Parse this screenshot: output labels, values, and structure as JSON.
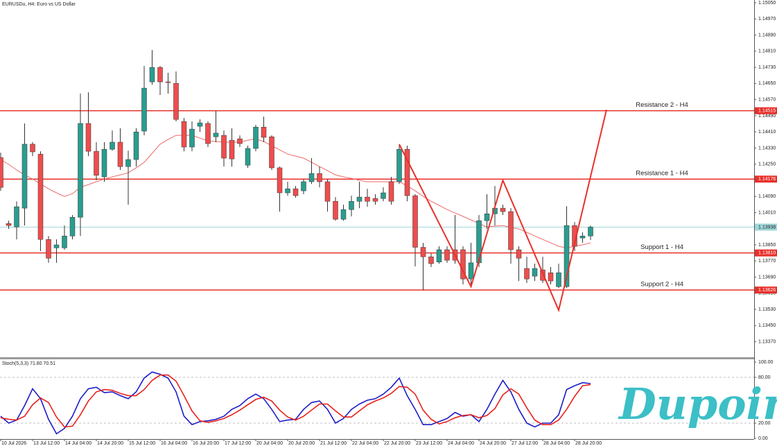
{
  "header": "EURUSDu, H4:  Euro vs US Dollar",
  "watermark": "Dupoin",
  "chart_data": [
    {
      "type": "candlestick",
      "categories": [
        "10 Jul 2026",
        null,
        null,
        null,
        "13 Jul 12:00",
        null,
        null,
        null,
        "14 Jul 04:00",
        null,
        null,
        null,
        "14 Jul 20:00",
        null,
        null,
        null,
        "15 Jul 12:00",
        null,
        null,
        null,
        "16 Jul 04:00",
        null,
        null,
        null,
        "16 Jul 20:00",
        null,
        null,
        null,
        "17 Jul 12:00",
        null,
        null,
        null,
        "20 Jul 04:00",
        null,
        null,
        null,
        "20 Jul 20:00",
        null,
        null,
        null,
        "21 Jul 12:00",
        null,
        null,
        null,
        "22 Jul 04:00",
        null,
        null,
        null,
        "22 Jul 20:00",
        null,
        null,
        null,
        "23 Jul 12:00",
        null,
        null,
        null,
        "24 Jul 04:00",
        null,
        null,
        null,
        "24 Jul 20:00",
        null,
        null,
        null,
        "27 Jul 12:00",
        null,
        null,
        null,
        "28 Jul 04:00",
        null,
        null,
        null,
        "28 Jul 20:00",
        null,
        null
      ],
      "open": [
        1.14283,
        1.13956,
        1.13939,
        1.14032,
        1.14349,
        1.143,
        1.13877,
        1.13835,
        1.13835,
        1.13894,
        1.13987,
        1.14452,
        1.14314,
        1.14187,
        1.14324,
        1.14359,
        1.14238,
        1.14273,
        1.14414,
        1.14658,
        1.1473,
        1.14658,
        1.14651,
        1.14462,
        1.14335,
        1.14438,
        1.14452,
        1.14386,
        1.14393,
        1.14369,
        1.14376,
        1.14245,
        1.14328,
        1.14434,
        1.14386,
        1.14232,
        1.14108,
        1.14128,
        1.14118,
        1.14163,
        1.14204,
        1.14163,
        1.14066,
        1.13977,
        1.14025,
        1.14066,
        1.14087,
        1.1408,
        1.1408,
        1.14163,
        1.14163,
        1.14324,
        1.14094,
        1.13838,
        1.13791,
        1.13765,
        1.13826,
        1.13826,
        1.13826,
        1.13681,
        1.13761,
        1.1397,
        1.14004,
        1.14032,
        1.14015,
        1.13826,
        1.13733,
        1.13695,
        1.13726,
        1.13712,
        1.13643,
        1.13643,
        1.13946,
        1.13884,
        1.13894
      ],
      "high": [
        1.14307,
        1.1397,
        1.14066,
        1.14452,
        1.14359,
        1.14314,
        1.13894,
        1.13877,
        1.13946,
        1.13998,
        1.146,
        1.14606,
        1.14359,
        1.14359,
        1.14417,
        1.14428,
        1.14317,
        1.14428,
        1.14737,
        1.14816,
        1.14737,
        1.14703,
        1.1471,
        1.14479,
        1.14462,
        1.14472,
        1.14462,
        1.14514,
        1.14417,
        1.14428,
        1.14393,
        1.14342,
        1.14445,
        1.14486,
        1.14393,
        1.14238,
        1.14163,
        1.14142,
        1.14176,
        1.1428,
        1.14238,
        1.14176,
        1.14087,
        1.14049,
        1.14094,
        1.14163,
        1.14128,
        1.14101,
        1.14135,
        1.14187,
        1.14349,
        1.14342,
        1.14101,
        1.1386,
        1.13808,
        1.13843,
        1.13843,
        1.13998,
        1.13843,
        1.1386,
        1.13998,
        1.14101,
        1.14142,
        1.14049,
        1.14032,
        1.13843,
        1.13791,
        1.13757,
        1.13791,
        1.1374,
        1.13757,
        1.14042,
        1.13963,
        1.13912,
        1.13946
      ],
      "low": [
        1.14118,
        1.13929,
        1.13877,
        1.13946,
        1.1429,
        1.13819,
        1.13761,
        1.13761,
        1.13826,
        1.13877,
        1.13894,
        1.1429,
        1.1417,
        1.14163,
        1.14317,
        1.14221,
        1.14049,
        1.14238,
        1.14393,
        1.14644,
        1.14593,
        1.146,
        1.14462,
        1.14314,
        1.14314,
        1.1441,
        1.14335,
        1.14359,
        1.14238,
        1.14238,
        1.14335,
        1.14232,
        1.14314,
        1.14359,
        1.14221,
        1.14015,
        1.14094,
        1.14084,
        1.14101,
        1.14152,
        1.14135,
        1.14015,
        1.1397,
        1.1397,
        1.13991,
        1.14032,
        1.14039,
        1.14049,
        1.14066,
        1.14049,
        1.14152,
        1.14066,
        1.13743,
        1.13626,
        1.1374,
        1.13757,
        1.13761,
        1.13757,
        1.13654,
        1.13654,
        1.1374,
        1.13929,
        1.13946,
        1.13998,
        1.13757,
        1.13671,
        1.13661,
        1.13671,
        1.13661,
        1.13654,
        1.13636,
        1.13636,
        1.13819,
        1.1386,
        1.13874
      ],
      "close": [
        1.14135,
        1.13946,
        1.14039,
        1.14349,
        1.14311,
        1.13877,
        1.13784,
        1.1385,
        1.13894,
        1.13987,
        1.14452,
        1.14314,
        1.14195,
        1.14324,
        1.14359,
        1.14238,
        1.14273,
        1.1441,
        1.14627,
        1.1473,
        1.14658,
        1.14655,
        1.14472,
        1.14335,
        1.14424,
        1.14455,
        1.14352,
        1.14404,
        1.1428,
        1.14276,
        1.14352,
        1.14328,
        1.14434,
        1.14383,
        1.14232,
        1.14108,
        1.14128,
        1.14094,
        1.14163,
        1.14204,
        1.14163,
        1.14066,
        1.13977,
        1.14025,
        1.14066,
        1.14087,
        1.14066,
        1.14066,
        1.14108,
        1.14066,
        1.14324,
        1.14094,
        1.13838,
        1.13791,
        1.13757,
        1.13826,
        1.13774,
        1.13774,
        1.13681,
        1.13761,
        1.1397,
        1.14004,
        1.14032,
        1.14015,
        1.13826,
        1.13784,
        1.13681,
        1.13733,
        1.13674,
        1.13671,
        1.13712,
        1.13946,
        1.13843,
        1.13894,
        1.13938
      ],
      "up_color": "#2a9d8f",
      "down_color": "#ee4d4d",
      "moving_average": {
        "color": "#f06a6a",
        "values": [
          1.14273,
          1.14249,
          1.14221,
          1.14197,
          1.14176,
          1.14152,
          1.14128,
          1.14108,
          1.1409,
          1.14104,
          1.14135,
          1.14149,
          1.14163,
          1.14176,
          1.14187,
          1.14197,
          1.14207,
          1.14232,
          1.14259,
          1.14304,
          1.14349,
          1.14373,
          1.14393,
          1.14393,
          1.14393,
          1.14379,
          1.14366,
          1.14362,
          1.14359,
          1.14359,
          1.14359,
          1.14369,
          1.14376,
          1.14362,
          1.14342,
          1.14321,
          1.143,
          1.1429,
          1.1428,
          1.14259,
          1.14238,
          1.14218,
          1.14197,
          1.14187,
          1.1418,
          1.1417,
          1.14163,
          1.14163,
          1.14163,
          1.14163,
          1.14163,
          1.14142,
          1.14118,
          1.1409,
          1.14066,
          1.14046,
          1.14025,
          1.14008,
          1.13991,
          1.13974,
          1.13956,
          1.13939,
          1.13943,
          1.13946,
          1.13936,
          1.13929,
          1.13912,
          1.13894,
          1.13877,
          1.1386,
          1.13843,
          1.13835,
          1.13843,
          1.1385,
          1.1386
        ]
      },
      "zigzag": {
        "color": "#e8302a",
        "x": [
          50,
          59,
          63,
          70,
          76
        ],
        "values": [
          1.14349,
          1.13643,
          1.1417,
          1.13526,
          1.1452
        ]
      },
      "levels": [
        {
          "name": "Resistance 2 - H4",
          "value": 1.14515,
          "label": "1.14515"
        },
        {
          "name": "Resistance 1 - H4",
          "value": 1.14176,
          "label": "1.14176"
        },
        {
          "name": "Support 1 - H4",
          "value": 1.1381,
          "label": "1.13810"
        },
        {
          "name": "Support 2 - H4",
          "value": 1.13626,
          "label": "1.13626"
        }
      ],
      "level_color": "#e8302a",
      "current_price": {
        "value": 1.13938,
        "label": "1.13938",
        "color": "#9fd6da"
      },
      "ylim": [
        1.13293,
        1.15064
      ],
      "yticks": [
        {
          "value": 1.1505,
          "label": "1.15050"
        },
        {
          "value": 1.1497,
          "label": "1.14970"
        },
        {
          "value": 1.1489,
          "label": "1.14890"
        },
        {
          "value": 1.1481,
          "label": "1.14810"
        },
        {
          "value": 1.1473,
          "label": "1.14730"
        },
        {
          "value": 1.1465,
          "label": "1.14650"
        },
        {
          "value": 1.1457,
          "label": "1.14570"
        },
        {
          "value": 1.1449,
          "label": "1.14490"
        },
        {
          "value": 1.1441,
          "label": "1.14410"
        },
        {
          "value": 1.1433,
          "label": "1.14330"
        },
        {
          "value": 1.1425,
          "label": "1.14250"
        },
        {
          "value": 1.1417,
          "label": "1.14170"
        },
        {
          "value": 1.1409,
          "label": "1.14090"
        },
        {
          "value": 1.1401,
          "label": "1.14010"
        },
        {
          "value": 1.1393,
          "label": "1.13930"
        },
        {
          "value": 1.1385,
          "label": "1.13850"
        },
        {
          "value": 1.1377,
          "label": "1.13770"
        },
        {
          "value": 1.1369,
          "label": "1.13690"
        },
        {
          "value": 1.1361,
          "label": "1.13610"
        },
        {
          "value": 1.1353,
          "label": "1.13530"
        },
        {
          "value": 1.1345,
          "label": "1.13450"
        },
        {
          "value": 1.1337,
          "label": "1.13370"
        }
      ]
    },
    {
      "type": "line",
      "title": "Stoch(5,3,3) 71.80 70.51",
      "lines": [
        {
          "color": "#1c1cc8",
          "values": [
            29,
            20,
            24,
            43,
            65,
            52,
            25,
            6,
            13,
            29,
            52,
            65,
            67,
            60,
            61,
            56,
            52,
            61,
            79,
            87,
            84,
            79,
            61,
            29,
            18,
            22,
            23,
            25,
            29,
            38,
            43,
            52,
            58,
            52,
            38,
            22,
            24,
            25,
            38,
            47,
            49,
            38,
            20,
            26,
            38,
            45,
            50,
            52,
            58,
            67,
            79,
            56,
            38,
            18,
            18,
            22,
            26,
            34,
            29,
            31,
            22,
            38,
            58,
            76,
            61,
            38,
            20,
            15,
            20,
            20,
            31,
            64,
            69,
            73,
            71.8
          ]
        },
        {
          "color": "#e8201a",
          "values": [
            27,
            25,
            24,
            29,
            44,
            53,
            47,
            28,
            15,
            16,
            31,
            49,
            61,
            64,
            63,
            59,
            56,
            56,
            64,
            76,
            83,
            83,
            75,
            56,
            36,
            23,
            21,
            23,
            26,
            31,
            37,
            44,
            51,
            54,
            49,
            37,
            28,
            24,
            29,
            37,
            45,
            45,
            36,
            28,
            28,
            36,
            44,
            49,
            53,
            59,
            68,
            67,
            58,
            37,
            25,
            19,
            22,
            27,
            30,
            31,
            27,
            30,
            39,
            57,
            65,
            58,
            40,
            24,
            18,
            18,
            24,
            38,
            55,
            69,
            70.51
          ]
        }
      ],
      "levels": [
        80,
        20
      ],
      "ylim": [
        -3.6,
        103.6
      ],
      "yticks": [
        {
          "value": 100,
          "label": "100.00"
        },
        {
          "value": 80,
          "label": "80.00"
        },
        {
          "value": 20,
          "label": "20.00"
        },
        {
          "value": 0,
          "label": "0.00"
        }
      ]
    }
  ]
}
